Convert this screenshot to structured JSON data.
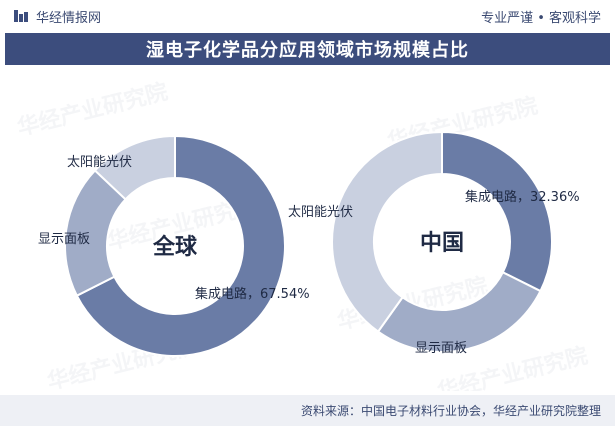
{
  "header": {
    "brand": "华经情报网",
    "tagline": "专业严谨 • 客观科学"
  },
  "title": "湿电子化学品分应用领域市场规模占比",
  "watermark": "华经产业研究院",
  "watermark_url": "www.huaon.com",
  "footer": {
    "source": "资料来源：中国电子材料行业协会，华经产业研究院整理"
  },
  "colors": {
    "primary": "#3c4d7d",
    "series": [
      "#6a7ca6",
      "#a0acc7",
      "#c9d0e0"
    ]
  },
  "chart_data": [
    {
      "type": "pie",
      "style": "donut",
      "center_label": "全球",
      "categories": [
        "集成电路",
        "显示面板",
        "太阳能光伏"
      ],
      "values": [
        67.54,
        19.5,
        12.96
      ],
      "data_labels": [
        "集成电路，67.54%",
        "显示面板",
        "太阳能光伏"
      ]
    },
    {
      "type": "pie",
      "style": "donut",
      "center_label": "中国",
      "categories": [
        "集成电路",
        "显示面板",
        "太阳能光伏"
      ],
      "values": [
        32.36,
        27.5,
        40.14
      ],
      "data_labels": [
        "集成电路，32.36%",
        "显示面板",
        "太阳能光伏"
      ]
    }
  ]
}
